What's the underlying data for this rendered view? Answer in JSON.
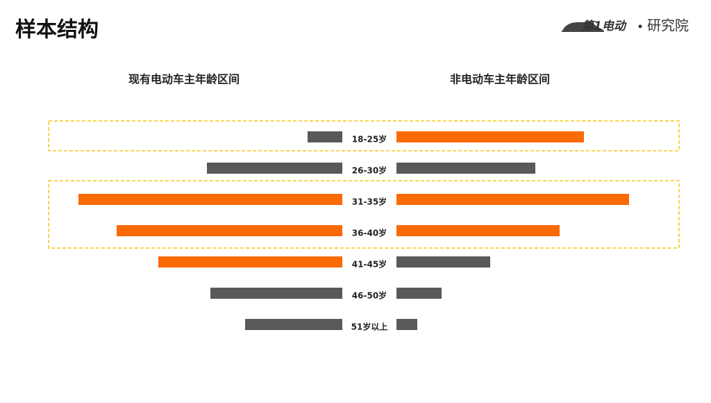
{
  "header": {
    "title": "样本结构",
    "logo_brand": "第1电动",
    "logo_text": "研究院"
  },
  "chart_data": {
    "type": "butterfly",
    "categories": [
      "18-25岁",
      "26-30岁",
      "31-35岁",
      "36-40岁",
      "41-45岁",
      "46-50岁",
      "51岁以上"
    ],
    "series": [
      {
        "name": "现有电动车主年龄区间",
        "values": [
          5,
          19.5,
          38,
          32.5,
          26.5,
          19,
          14
        ],
        "colors": [
          "#595959",
          "#595959",
          "#fa6a05",
          "#fa6a05",
          "#fa6a05",
          "#595959",
          "#595959"
        ]
      },
      {
        "name": "非电动车主年龄区间",
        "values": [
          27,
          20,
          33.5,
          23.5,
          13.5,
          6.5,
          3
        ],
        "colors": [
          "#fa6a05",
          "#595959",
          "#fa6a05",
          "#fa6a05",
          "#595959",
          "#595959",
          "#595959"
        ]
      }
    ],
    "xlim": [
      0,
      40
    ]
  }
}
